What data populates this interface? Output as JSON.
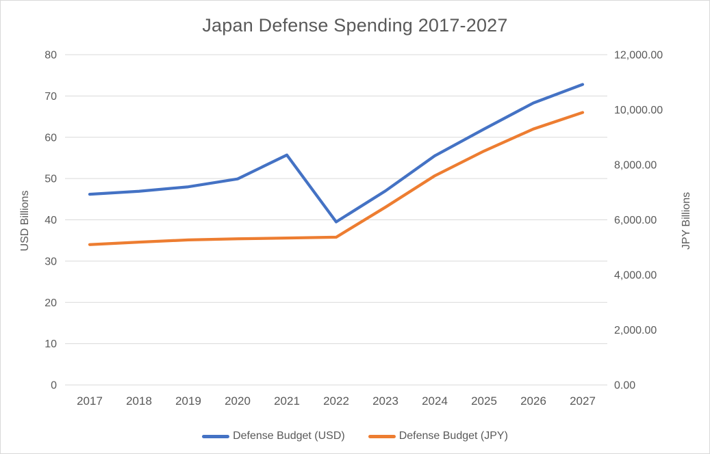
{
  "chart": {
    "title": "Japan Defense Spending 2017-2027",
    "left_axis_title": "USD Billions",
    "right_axis_title": "JPY Billions",
    "legend": [
      {
        "label": "Defense Budget (USD)",
        "color": "#4472C4"
      },
      {
        "label": "Defense Budget (JPY)",
        "color": "#ED7D31"
      }
    ]
  },
  "chart_data": {
    "type": "line",
    "title": "Japan Defense Spending 2017-2027",
    "categories": [
      "2017",
      "2018",
      "2019",
      "2020",
      "2021",
      "2022",
      "2023",
      "2024",
      "2025",
      "2026",
      "2027"
    ],
    "series": [
      {
        "name": "Defense Budget (USD)",
        "axis": "left",
        "color": "#4472C4",
        "values": [
          46.2,
          46.9,
          48.0,
          49.9,
          55.7,
          39.5,
          47.0,
          55.5,
          62.0,
          68.3,
          72.8
        ]
      },
      {
        "name": "Defense Budget (JPY)",
        "axis": "right",
        "color": "#ED7D31",
        "values": [
          5100,
          5190,
          5270,
          5310,
          5340,
          5370,
          6460,
          7600,
          8500,
          9300,
          9900
        ]
      }
    ],
    "left_axis": {
      "label": "USD Billions",
      "min": 0,
      "max": 80,
      "step": 10,
      "tick_labels": [
        "0",
        "10",
        "20",
        "30",
        "40",
        "50",
        "60",
        "70",
        "80"
      ]
    },
    "right_axis": {
      "label": "JPY Billions",
      "min": 0,
      "max": 12000,
      "step": 2000,
      "tick_labels": [
        "0.00",
        "2,000.00",
        "4,000.00",
        "6,000.00",
        "8,000.00",
        "10,000.00",
        "12,000.00"
      ]
    },
    "grid": true,
    "legend_position": "bottom",
    "colors": {
      "grid": "#d9d9d9",
      "text": "#595959",
      "border": "#d9d9d9",
      "background": "#ffffff"
    }
  }
}
